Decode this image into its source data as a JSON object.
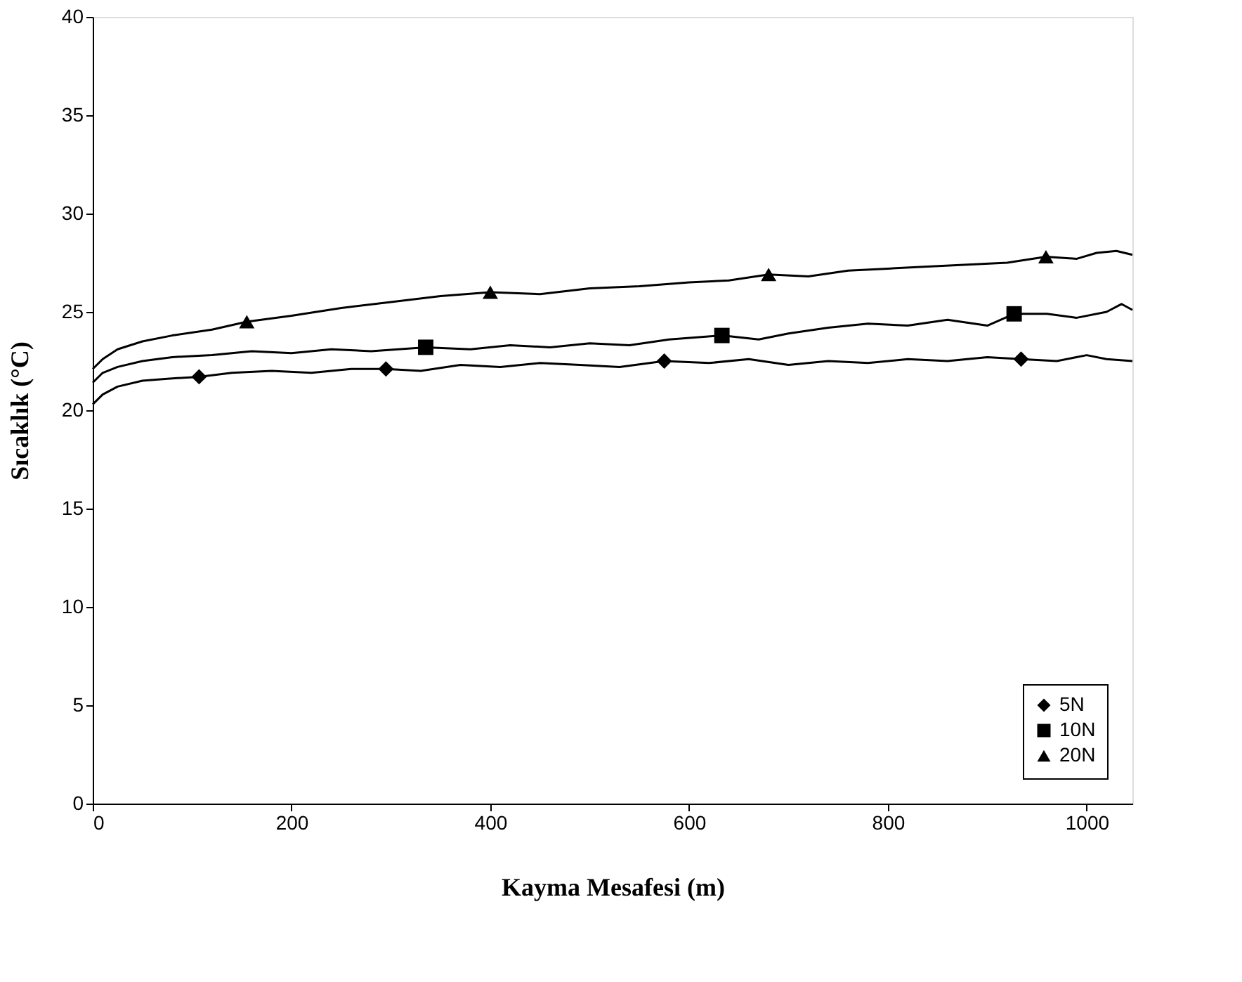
{
  "chart_data": {
    "type": "line",
    "xlabel": "Kayma Mesafesi (m)",
    "ylabel": "Sıcaklık (°C)",
    "xlim": [
      0,
      1046
    ],
    "xticks": [
      0,
      200,
      400,
      600,
      800,
      1000
    ],
    "ylim": [
      0,
      40
    ],
    "yticks": [
      0,
      5,
      10,
      15,
      20,
      25,
      30,
      35,
      40
    ],
    "grid": false,
    "legend": "bottom right",
    "line_style": "solid",
    "series": [
      {
        "type": "line",
        "color": "#000000",
        "x": [
          0,
          10,
          25,
          50,
          75,
          107,
          140,
          180,
          220,
          260,
          295,
          330,
          370,
          410,
          450,
          490,
          530,
          575,
          620,
          660,
          700,
          740,
          780,
          820,
          860,
          900,
          934,
          970,
          1000,
          1020,
          1046
        ],
        "values": [
          20.3,
          20.8,
          21.2,
          21.5,
          21.6,
          21.7,
          21.9,
          22.0,
          21.9,
          22.1,
          22.1,
          22.0,
          22.3,
          22.2,
          22.4,
          22.3,
          22.2,
          22.5,
          22.4,
          22.6,
          22.3,
          22.5,
          22.4,
          22.6,
          22.5,
          22.7,
          22.6,
          22.5,
          22.8,
          22.6,
          22.5
        ]
      },
      {
        "type": "line",
        "color": "#000000",
        "x": [
          0,
          10,
          25,
          50,
          80,
          120,
          160,
          200,
          240,
          280,
          335,
          380,
          420,
          460,
          500,
          540,
          580,
          633,
          670,
          700,
          740,
          780,
          820,
          860,
          900,
          927,
          960,
          990,
          1020,
          1035,
          1046
        ],
        "values": [
          21.4,
          21.9,
          22.2,
          22.5,
          22.7,
          22.8,
          23.0,
          22.9,
          23.1,
          23.0,
          23.2,
          23.1,
          23.3,
          23.2,
          23.4,
          23.3,
          23.6,
          23.8,
          23.6,
          23.9,
          24.2,
          24.4,
          24.3,
          24.6,
          24.3,
          24.9,
          24.9,
          24.7,
          25.0,
          25.4,
          25.1
        ]
      },
      {
        "type": "line",
        "color": "#000000",
        "x": [
          0,
          10,
          25,
          50,
          80,
          120,
          155,
          200,
          250,
          300,
          350,
          400,
          450,
          500,
          550,
          600,
          640,
          680,
          720,
          760,
          800,
          840,
          880,
          920,
          959,
          990,
          1010,
          1030,
          1046
        ],
        "values": [
          22.1,
          22.6,
          23.1,
          23.5,
          23.8,
          24.1,
          24.5,
          24.8,
          25.2,
          25.5,
          25.8,
          26.0,
          25.9,
          26.2,
          26.3,
          26.5,
          26.6,
          26.9,
          26.8,
          27.1,
          27.2,
          27.3,
          27.4,
          27.5,
          27.8,
          27.7,
          28.0,
          28.1,
          27.9
        ]
      },
      {
        "type": "scatter",
        "name": "5N",
        "marker": "diamond",
        "color": "#000000",
        "x": [
          107,
          295,
          575,
          934
        ],
        "values": [
          21.7,
          22.1,
          22.5,
          22.6
        ]
      },
      {
        "type": "scatter",
        "name": "10N",
        "marker": "square",
        "color": "#000000",
        "x": [
          335,
          633,
          927
        ],
        "values": [
          23.2,
          23.8,
          24.9
        ]
      },
      {
        "type": "scatter",
        "name": "20N",
        "marker": "triangle",
        "color": "#000000",
        "x": [
          155,
          400,
          680,
          959
        ],
        "values": [
          24.5,
          26.0,
          26.9,
          27.8
        ]
      }
    ]
  }
}
